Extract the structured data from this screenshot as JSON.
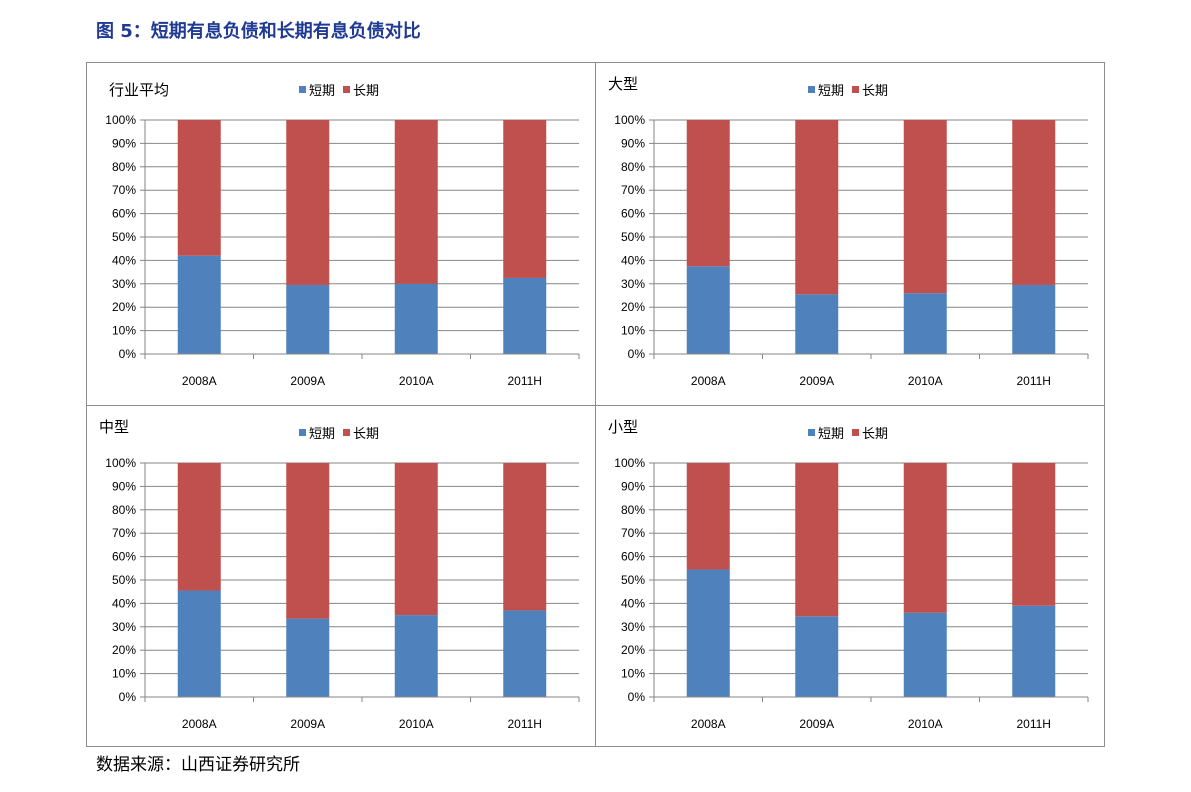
{
  "figure": {
    "title": "图 5：短期有息负债和长期有息负债对比",
    "source": "数据来源：山西证券研究所"
  },
  "colors": {
    "short": "#4f81bd",
    "long": "#c0504d",
    "grid": "#868686",
    "axis": "#868686"
  },
  "legend": {
    "short_label": "短期",
    "long_label": "长期"
  },
  "chart_data": [
    {
      "type": "bar",
      "stacked": true,
      "title": "行业平均",
      "categories": [
        "2008A",
        "2009A",
        "2010A",
        "2011H"
      ],
      "series": [
        {
          "name": "短期",
          "values": [
            42,
            29.5,
            30,
            32.5
          ]
        },
        {
          "name": "长期",
          "values": [
            58,
            70.5,
            70,
            67.5
          ]
        }
      ],
      "yticks": [
        "0%",
        "10%",
        "20%",
        "30%",
        "40%",
        "50%",
        "60%",
        "70%",
        "80%",
        "90%",
        "100%"
      ],
      "ylim": [
        0,
        100
      ],
      "grid": true,
      "legend_position": "top"
    },
    {
      "type": "bar",
      "stacked": true,
      "title": "大型",
      "categories": [
        "2008A",
        "2009A",
        "2010A",
        "2011H"
      ],
      "series": [
        {
          "name": "短期",
          "values": [
            37.5,
            25.5,
            26,
            29.5
          ]
        },
        {
          "name": "长期",
          "values": [
            62.5,
            74.5,
            74,
            70.5
          ]
        }
      ],
      "yticks": [
        "0%",
        "10%",
        "20%",
        "30%",
        "40%",
        "50%",
        "60%",
        "70%",
        "80%",
        "90%",
        "100%"
      ],
      "ylim": [
        0,
        100
      ],
      "grid": true,
      "legend_position": "top"
    },
    {
      "type": "bar",
      "stacked": true,
      "title": "中型",
      "categories": [
        "2008A",
        "2009A",
        "2010A",
        "2011H"
      ],
      "series": [
        {
          "name": "短期",
          "values": [
            45.5,
            33.5,
            35,
            37
          ]
        },
        {
          "name": "长期",
          "values": [
            54.5,
            66.5,
            65,
            63
          ]
        }
      ],
      "yticks": [
        "0%",
        "10%",
        "20%",
        "30%",
        "40%",
        "50%",
        "60%",
        "70%",
        "80%",
        "90%",
        "100%"
      ],
      "ylim": [
        0,
        100
      ],
      "grid": true,
      "legend_position": "top"
    },
    {
      "type": "bar",
      "stacked": true,
      "title": "小型",
      "categories": [
        "2008A",
        "2009A",
        "2010A",
        "2011H"
      ],
      "series": [
        {
          "name": "短期",
          "values": [
            54.5,
            34.5,
            36,
            39
          ]
        },
        {
          "name": "长期",
          "values": [
            45.5,
            65.5,
            64,
            61
          ]
        }
      ],
      "yticks": [
        "0%",
        "10%",
        "20%",
        "30%",
        "40%",
        "50%",
        "60%",
        "70%",
        "80%",
        "90%",
        "100%"
      ],
      "ylim": [
        0,
        100
      ],
      "grid": true,
      "legend_position": "top"
    }
  ]
}
